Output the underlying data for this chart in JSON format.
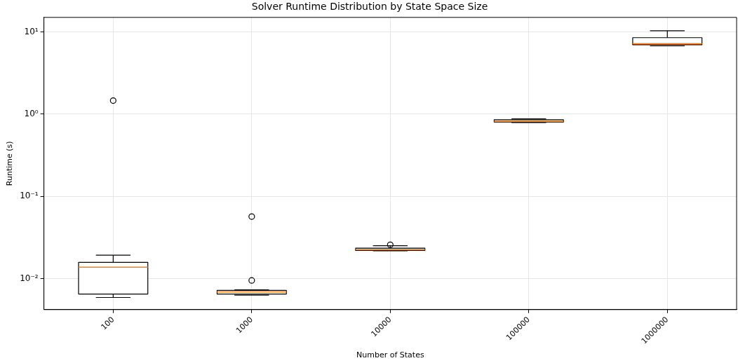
{
  "chart_data": {
    "type": "box",
    "title": "Solver Runtime Distribution by State Space Size",
    "xlabel": "Number of States",
    "ylabel": "Runtime (s)",
    "categories": [
      "100",
      "1000",
      "10000",
      "100000",
      "1000000"
    ],
    "boxes": [
      {
        "low": 0.0059,
        "q1": 0.0065,
        "median": 0.0138,
        "q3": 0.0158,
        "high": 0.0193,
        "outliers": [
          1.46
        ]
      },
      {
        "low": 0.0063,
        "q1": 0.0065,
        "median": 0.0069,
        "q3": 0.0072,
        "high": 0.0073,
        "outliers": [
          0.0095,
          0.0568
        ]
      },
      {
        "low": 0.0218,
        "q1": 0.022,
        "median": 0.0226,
        "q3": 0.0235,
        "high": 0.0251,
        "outliers": [
          0.0258
        ]
      },
      {
        "low": 0.79,
        "q1": 0.8,
        "median": 0.82,
        "q3": 0.854,
        "high": 0.877
      },
      {
        "low": 6.75,
        "q1": 6.97,
        "median": 7.2,
        "q3": 8.5,
        "high": 10.3
      }
    ],
    "color": "#000000",
    "log": "y",
    "ylim": [
      0.0042,
      15
    ],
    "yticks": [
      {
        "value": 0.01,
        "label": "10⁻²"
      },
      {
        "value": 0.1,
        "label": "10⁻¹"
      },
      {
        "value": 1,
        "label": "10⁰"
      },
      {
        "value": 10,
        "label": "10¹"
      }
    ],
    "grid": true,
    "legend": false,
    "marker": "circle"
  }
}
